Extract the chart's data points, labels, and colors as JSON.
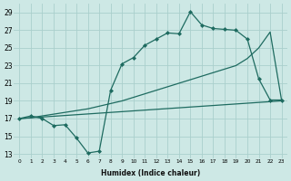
{
  "xlabel": "Humidex (Indice chaleur)",
  "bg_color": "#cde8e5",
  "grid_color": "#aacfcc",
  "line_color": "#1e6b60",
  "xlim": [
    -0.5,
    23.5
  ],
  "ylim": [
    12.5,
    30.0
  ],
  "xticks": [
    0,
    1,
    2,
    3,
    4,
    5,
    6,
    7,
    8,
    9,
    10,
    11,
    12,
    13,
    14,
    15,
    16,
    17,
    18,
    19,
    20,
    21,
    22,
    23
  ],
  "yticks": [
    13,
    15,
    17,
    19,
    21,
    23,
    25,
    27,
    29
  ],
  "series1_x": [
    0,
    23
  ],
  "series1_y": [
    17,
    19
  ],
  "series2_x": [
    0,
    1,
    2,
    3,
    4,
    5,
    6,
    7,
    8,
    9,
    10,
    11,
    12,
    13,
    14,
    15,
    16,
    17,
    18,
    19,
    20,
    21,
    22,
    23
  ],
  "series2_y": [
    17.0,
    17.1,
    17.3,
    17.5,
    17.7,
    17.9,
    18.1,
    18.4,
    18.7,
    19.0,
    19.4,
    19.8,
    20.2,
    20.6,
    21.0,
    21.4,
    21.8,
    22.2,
    22.6,
    23.0,
    23.8,
    25.0,
    26.8,
    19.1
  ],
  "series3_x": [
    0,
    1,
    2,
    3,
    4,
    5,
    6,
    7,
    8,
    9,
    10,
    11,
    12,
    13,
    14,
    15,
    16,
    17,
    18,
    19,
    20,
    21,
    22,
    23
  ],
  "series3_y": [
    17.0,
    17.3,
    17.0,
    16.2,
    16.3,
    14.8,
    13.1,
    13.3,
    20.2,
    23.2,
    23.9,
    25.3,
    26.0,
    26.7,
    26.6,
    29.1,
    27.6,
    27.2,
    27.1,
    27.0,
    26.0,
    21.5,
    19.1,
    19.1
  ]
}
